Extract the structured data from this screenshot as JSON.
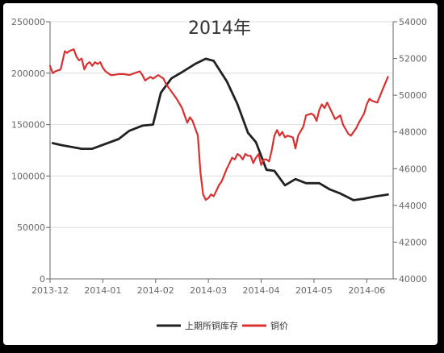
{
  "chart_data": {
    "type": "line",
    "title": "2014年",
    "x_labels": [
      "2013-12",
      "2014-01",
      "2014-02",
      "2014-03",
      "2014-04",
      "2014-05",
      "2014-06"
    ],
    "y_left": {
      "min": 0,
      "max": 250000,
      "ticks": [
        "0",
        "50000",
        "100000",
        "150000",
        "200000",
        "250000"
      ]
    },
    "y_right": {
      "min": 40000,
      "max": 54000,
      "ticks": [
        "40000",
        "42000",
        "44000",
        "46000",
        "48000",
        "50000",
        "52000",
        "54000"
      ]
    },
    "grid": true,
    "legend": "bottom-center",
    "series": [
      {
        "name": "上期所铜库存",
        "axis": "left",
        "color": "#222222",
        "x": [
          0.05,
          0.22,
          0.6,
          0.8,
          1.3,
          1.5,
          1.75,
          1.95,
          2.1,
          2.3,
          2.5,
          2.75,
          2.95,
          3.1,
          3.35,
          3.55,
          3.75,
          3.9,
          4.1,
          4.25,
          4.45,
          4.65,
          4.85,
          5.1,
          5.3,
          5.5,
          5.75,
          5.95,
          6.15,
          6.4
        ],
        "y": [
          132000,
          130000,
          126500,
          126500,
          136000,
          144000,
          149000,
          150000,
          181000,
          195000,
          201000,
          209000,
          214000,
          212000,
          192000,
          170000,
          142000,
          133000,
          106000,
          105000,
          91000,
          97000,
          93000,
          93000,
          87000,
          83000,
          76500,
          78000,
          80000,
          82000
        ]
      },
      {
        "name": "铜价",
        "axis": "right",
        "color": "#d93030",
        "x": [
          0,
          0.05,
          0.1,
          0.2,
          0.28,
          0.32,
          0.36,
          0.45,
          0.5,
          0.55,
          0.6,
          0.65,
          0.7,
          0.75,
          0.8,
          0.85,
          0.9,
          0.95,
          1.0,
          1.05,
          1.1,
          1.15,
          1.2,
          1.3,
          1.4,
          1.5,
          1.6,
          1.7,
          1.75,
          1.8,
          1.85,
          1.9,
          1.95,
          2.0,
          2.05,
          2.1,
          2.15,
          2.2,
          2.3,
          2.4,
          2.5,
          2.55,
          2.6,
          2.65,
          2.7,
          2.75,
          2.8,
          2.85,
          2.9,
          2.95,
          3.0,
          3.05,
          3.1,
          3.15,
          3.2,
          3.25,
          3.35,
          3.45,
          3.5,
          3.55,
          3.6,
          3.65,
          3.7,
          3.75,
          3.8,
          3.85,
          3.9,
          3.95,
          4.0,
          4.05,
          4.1,
          4.15,
          4.2,
          4.25,
          4.3,
          4.35,
          4.4,
          4.45,
          4.5,
          4.6,
          4.65,
          4.7,
          4.8,
          4.85,
          4.95,
          5.0,
          5.05,
          5.1,
          5.15,
          5.2,
          5.25,
          5.35,
          5.4,
          5.5,
          5.55,
          5.65,
          5.7,
          5.8,
          5.85,
          5.95,
          6.0,
          6.05,
          6.1,
          6.2,
          6.3,
          6.4
        ],
        "y": [
          51600,
          51200,
          51300,
          51400,
          52400,
          52300,
          52400,
          52500,
          52100,
          51900,
          52000,
          51400,
          51700,
          51800,
          51600,
          51800,
          51700,
          51800,
          51500,
          51300,
          51200,
          51100,
          51100,
          51150,
          51150,
          51100,
          51200,
          51300,
          51100,
          50800,
          50900,
          51000,
          50900,
          51000,
          51100,
          51000,
          50900,
          50600,
          50200,
          49800,
          49300,
          48900,
          48500,
          48800,
          48600,
          48200,
          47800,
          45800,
          44600,
          44300,
          44400,
          44600,
          44500,
          44800,
          45100,
          45300,
          46000,
          46600,
          46500,
          46800,
          46700,
          46500,
          46800,
          46700,
          46700,
          46300,
          46600,
          46800,
          46200,
          46500,
          46500,
          46400,
          47000,
          47800,
          48100,
          47800,
          48000,
          47700,
          47800,
          47700,
          47100,
          47800,
          48300,
          48900,
          49000,
          48900,
          48600,
          49200,
          49500,
          49300,
          49600,
          49000,
          48700,
          48900,
          48400,
          47900,
          47800,
          48200,
          48500,
          49000,
          49500,
          49800,
          49700,
          49600,
          50300,
          51000
        ]
      }
    ]
  }
}
